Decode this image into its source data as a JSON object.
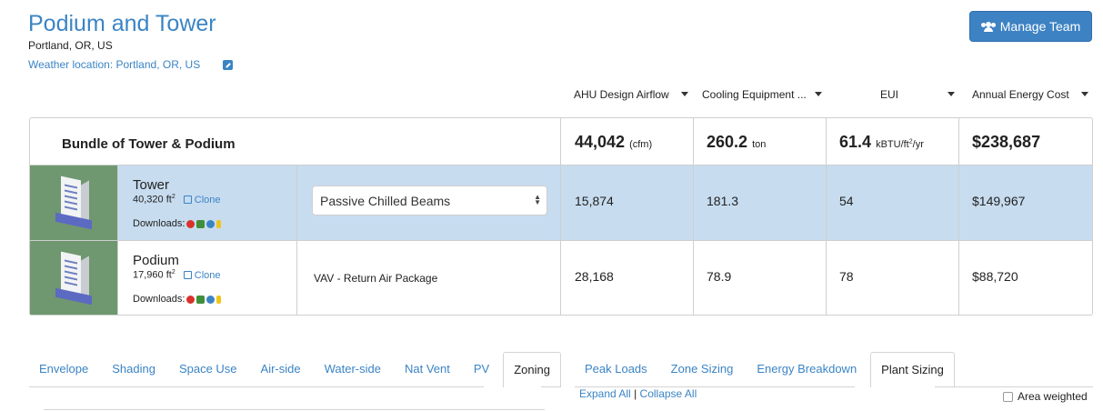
{
  "project": {
    "title": "Podium and Tower",
    "location": "Portland, OR, US",
    "weather_location": "Weather location: Portland, OR, US"
  },
  "header": {
    "manage_team_label": "Manage Team",
    "manage_team_icon": "users-icon"
  },
  "metric_selectors": [
    {
      "label": "AHU Design Airflow"
    },
    {
      "label": "Cooling Equipment ..."
    },
    {
      "label": "EUI"
    },
    {
      "label": "Annual Energy Cost"
    }
  ],
  "bundle": {
    "name": "Bundle of Tower & Podium",
    "airflow": "44,042",
    "airflow_unit": "(cfm)",
    "cooling": "260.2",
    "cooling_unit": "ton",
    "eui": "61.4",
    "eui_unit_pre": "kBTU/ft",
    "eui_unit_sup": "2",
    "eui_unit_post": "/yr",
    "cost": "$238,687"
  },
  "buildings": [
    {
      "name": "Tower",
      "area": "40,320 ft",
      "area_sup": "2",
      "clone_label": "Clone",
      "downloads_label": "Downloads:",
      "system": "Passive Chilled Beams",
      "airflow": "15,874",
      "cooling": "181.3",
      "eui": "54",
      "cost": "$149,967",
      "selected": true
    },
    {
      "name": "Podium",
      "area": "17,960 ft",
      "area_sup": "2",
      "clone_label": "Clone",
      "downloads_label": "Downloads:",
      "system": "VAV - Return Air Package",
      "airflow": "28,168",
      "cooling": "78.9",
      "eui": "78",
      "cost": "$88,720",
      "selected": false
    }
  ],
  "left_tabs": [
    {
      "label": "Envelope"
    },
    {
      "label": "Shading"
    },
    {
      "label": "Space Use"
    },
    {
      "label": "Air-side"
    },
    {
      "label": "Water-side"
    },
    {
      "label": "Nat Vent"
    },
    {
      "label": "PV"
    },
    {
      "label": "Zoning",
      "active": true
    }
  ],
  "right_tabs": [
    {
      "label": "Peak Loads"
    },
    {
      "label": "Zone Sizing"
    },
    {
      "label": "Energy Breakdown"
    },
    {
      "label": "Plant Sizing",
      "active": true
    }
  ],
  "controls": {
    "expand_all": "Expand All",
    "separator": "|",
    "collapse_all": "Collapse All",
    "area_weighted": "Area weighted"
  },
  "colors": {
    "accent": "#3b84c4",
    "selected_row": "#c7dcef",
    "thumb_bg": "#6f9870",
    "button": "#3d82c3"
  }
}
